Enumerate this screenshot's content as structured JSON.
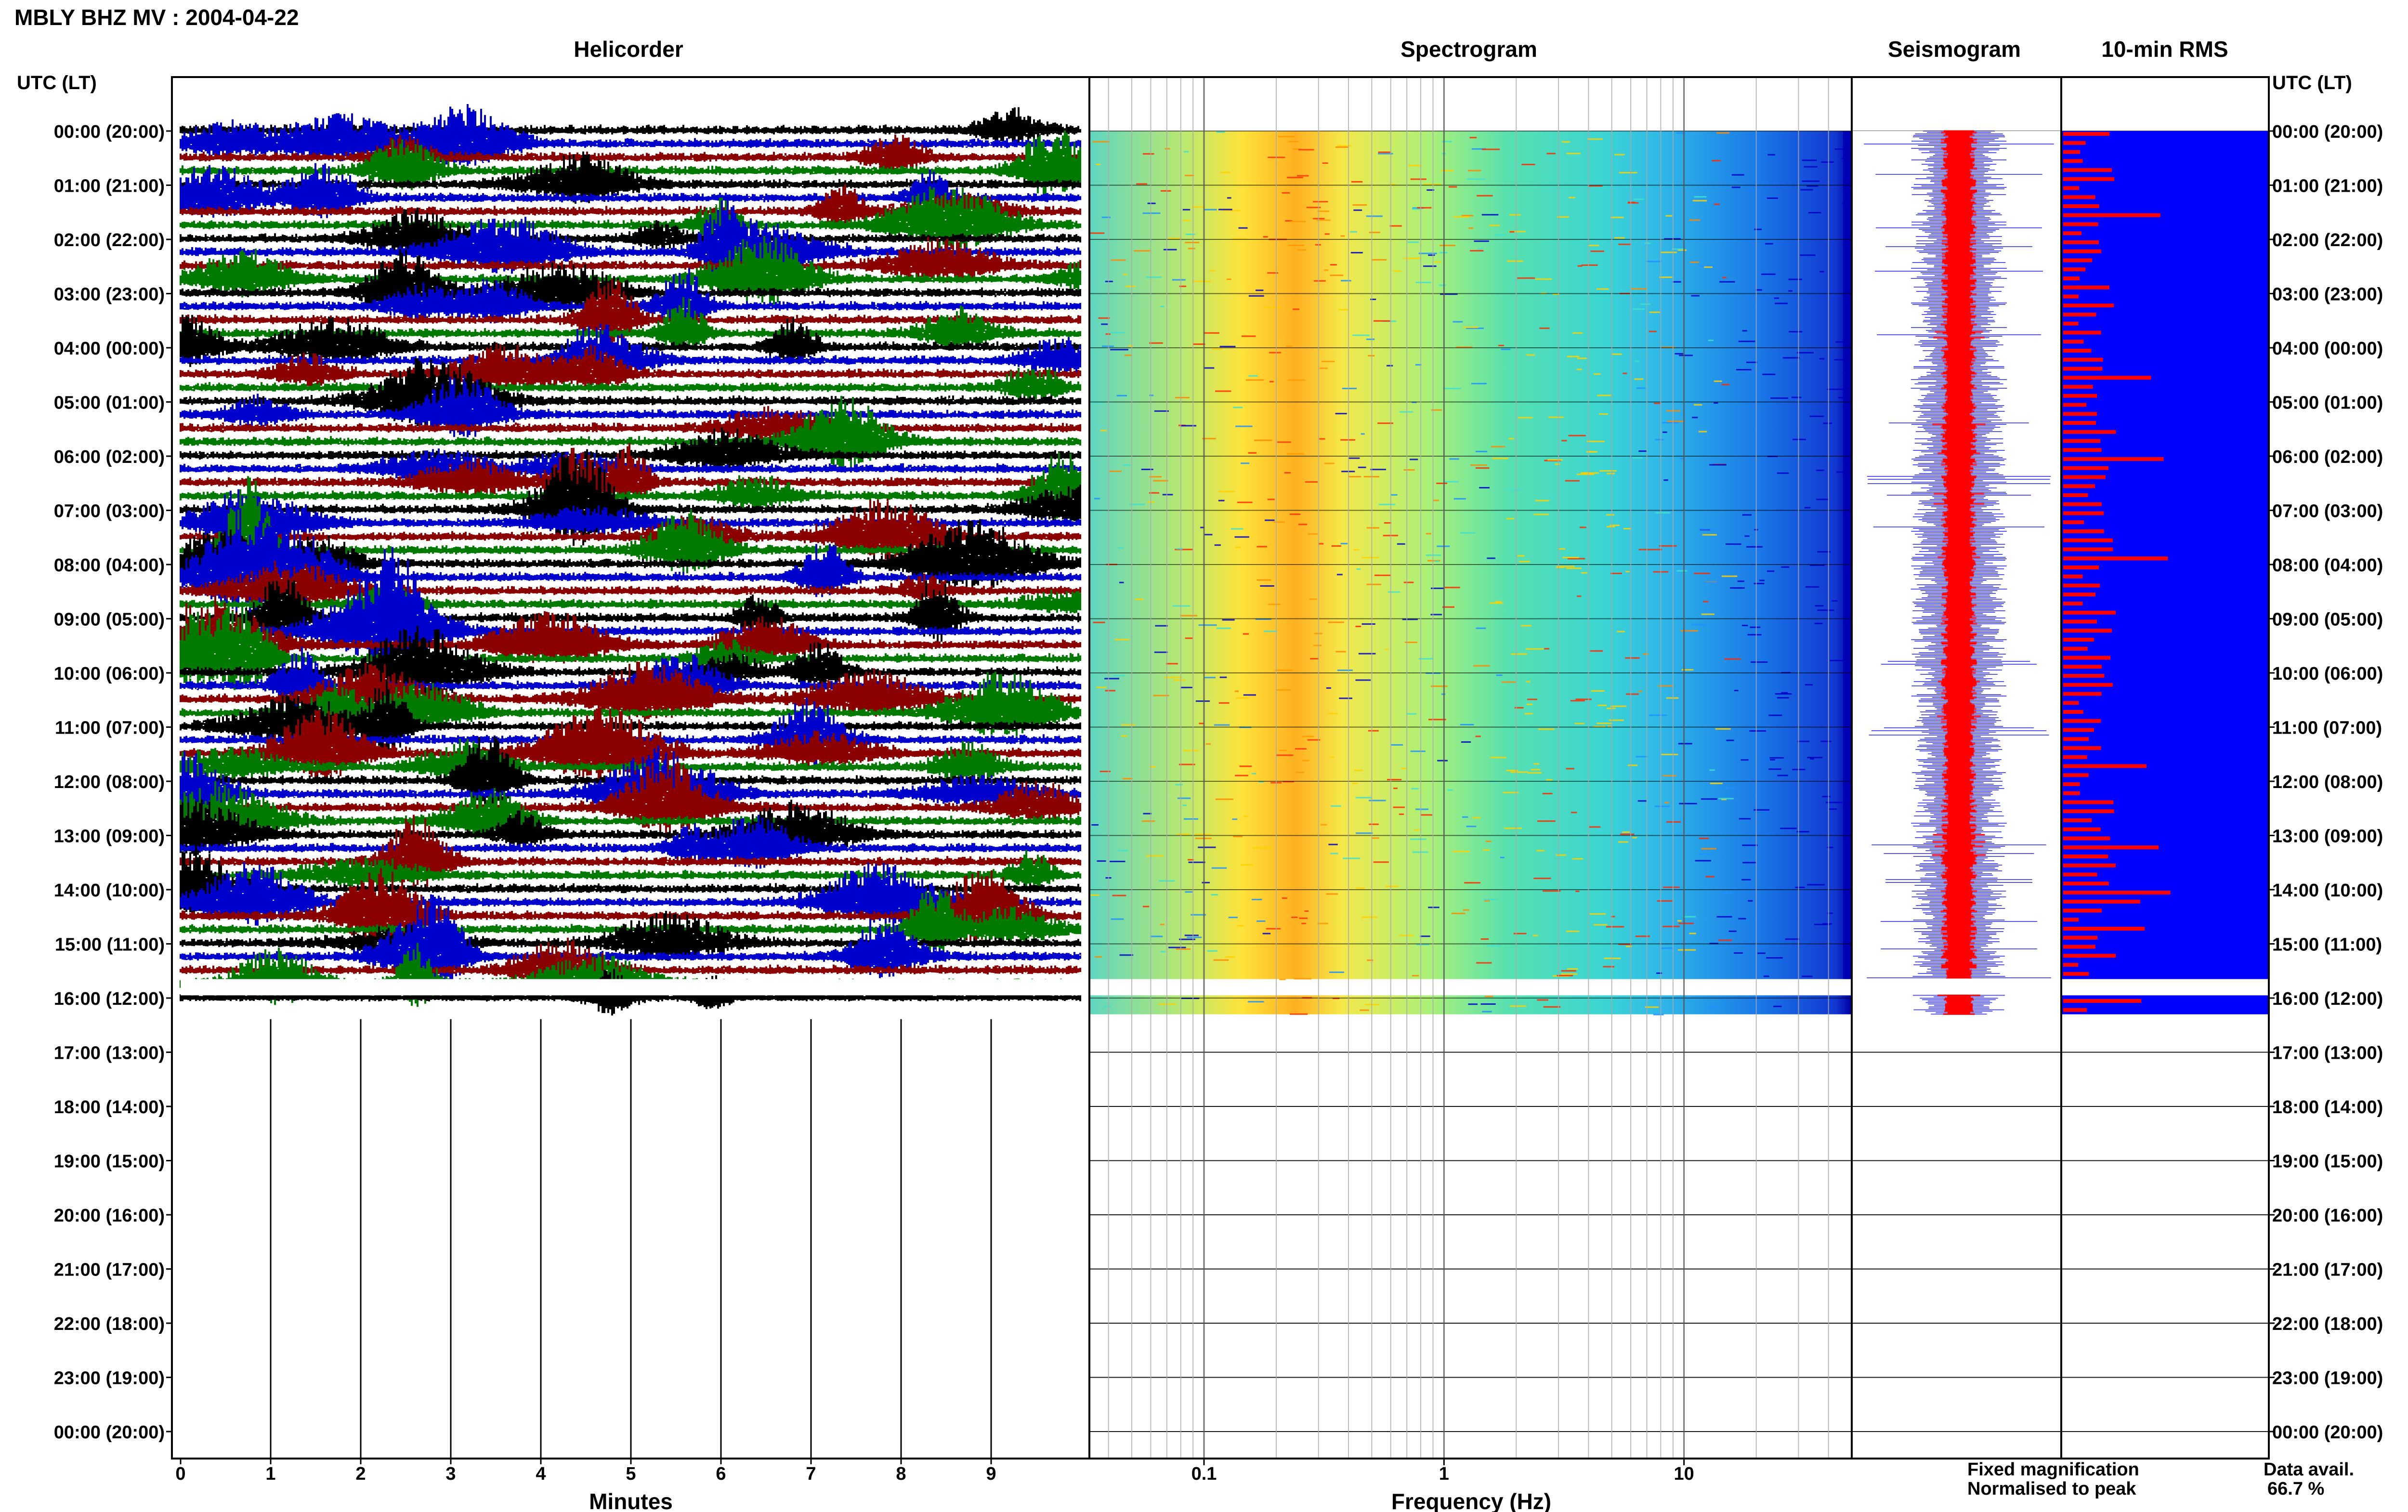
{
  "header": {
    "title": "MBLY BHZ MV : 2004-04-22"
  },
  "panels": {
    "helicorder": "Helicorder",
    "spectrogram": "Spectrogram",
    "seismogram": "Seismogram",
    "rms": "10-min RMS"
  },
  "time_axis": {
    "label_left": "UTC (LT)",
    "label_right": "UTC (LT)",
    "rows": [
      "00:00 (20:00)",
      "01:00 (21:00)",
      "02:00 (22:00)",
      "03:00 (23:00)",
      "04:00 (00:00)",
      "05:00 (01:00)",
      "06:00 (02:00)",
      "07:00 (03:00)",
      "08:00 (04:00)",
      "09:00 (05:00)",
      "10:00 (06:00)",
      "11:00 (07:00)",
      "12:00 (08:00)",
      "13:00 (09:00)",
      "14:00 (10:00)",
      "15:00 (11:00)",
      "16:00 (12:00)",
      "17:00 (13:00)",
      "18:00 (14:00)",
      "19:00 (15:00)",
      "20:00 (16:00)",
      "21:00 (17:00)",
      "22:00 (18:00)",
      "23:00 (19:00)",
      "00:00 (20:00)"
    ]
  },
  "helicorder_axis": {
    "xlabel": "Minutes",
    "ticks": [
      "0",
      "1",
      "2",
      "3",
      "4",
      "5",
      "6",
      "7",
      "8",
      "9"
    ],
    "trace_colors": [
      "#000000",
      "#0000cc",
      "#8b0000",
      "#007a00"
    ],
    "data_end_hour": 16.3
  },
  "spectrogram_axis": {
    "xlabel": "Frequency (Hz)",
    "ticks": [
      "0.1",
      "1",
      "10"
    ],
    "scale": "log",
    "xlim_hz": [
      0.0333,
      50
    ],
    "colormap": [
      "#0000c8",
      "#1e90ff",
      "#40e0d0",
      "#7fff7f",
      "#ffff40",
      "#ff9900",
      "#ff0000"
    ]
  },
  "legend": {
    "fixed": "Fixed magnification",
    "fixed_color": "#0000ff",
    "normalised": "Normalised to peak",
    "normalised_color": "#ff0000"
  },
  "availability": {
    "label": "Data avail.",
    "value": "66.7 %"
  },
  "chart_data": {
    "type": "heatmap",
    "title": "MBLY BHZ MV : 2004-04-22",
    "panels": [
      "Helicorder",
      "Spectrogram",
      "Seismogram",
      "10-min RMS"
    ],
    "y_rows_utc_hours": [
      0,
      1,
      2,
      3,
      4,
      5,
      6,
      7,
      8,
      9,
      10,
      11,
      12,
      13,
      14,
      15,
      16,
      17,
      18,
      19,
      20,
      21,
      22,
      23,
      24
    ],
    "data_gap_hours": [
      15.65,
      15.95
    ],
    "data_end_hours": 16.3,
    "data_availability_percent": 66.7,
    "helicorder": {
      "xlabel": "Minutes",
      "xlim": [
        0,
        10
      ],
      "tick_values": [
        0,
        1,
        2,
        3,
        4,
        5,
        6,
        7,
        8,
        9
      ]
    },
    "spectrogram": {
      "xlabel": "Frequency (Hz)",
      "xscale": "log",
      "tick_values": [
        0.1,
        1,
        10
      ],
      "dominant_band_hz": [
        0.2,
        0.3
      ],
      "secondary_band_hz": [
        2,
        6
      ]
    }
  }
}
